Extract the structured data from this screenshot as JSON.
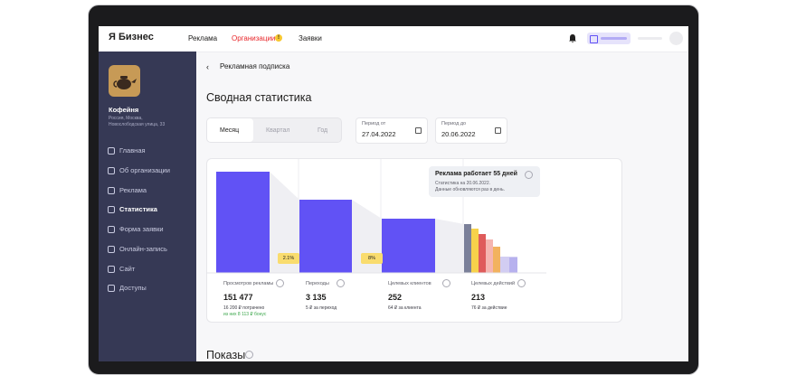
{
  "nav": {
    "logo": "Я Бизнес",
    "items": [
      "Реклама",
      "Организации",
      "Заявки"
    ],
    "badge": "!"
  },
  "sidebar": {
    "org_name": "Кофейня",
    "address": [
      "Россия, Москва,",
      "Новослободская улица, 33"
    ],
    "menu": [
      "Главная",
      "Об организации",
      "Реклама",
      "Статистика",
      "Форма заявки",
      "Онлайн-запись",
      "Сайт",
      "Доступы"
    ]
  },
  "page": {
    "back": "Рекламная подписка",
    "title": "Сводная статистика",
    "periods": [
      "Месяц",
      "Квартал",
      "Год"
    ],
    "date_from": {
      "label": "Период от",
      "value": "27.04.2022"
    },
    "date_to": {
      "label": "Период до",
      "value": "20.06.2022"
    }
  },
  "funnel": {
    "tooltip": {
      "title": "Реклама работает 55 дней",
      "lines": [
        "Статистика на 20.06.2022.",
        "Данные обновляются раз в день."
      ]
    },
    "conversions": [
      "2.1%",
      "8%"
    ],
    "metrics": [
      {
        "label": "Просмотров рекламы",
        "value": "151 477",
        "sub": [
          "16 200 ₽ потрачено",
          "из них 8 113 ₽ бонус"
        ]
      },
      {
        "label": "Переходы",
        "value": "3 135",
        "sub": [
          "5 ₽ за переход"
        ]
      },
      {
        "label": "Целевых клиентов",
        "value": "252",
        "sub": [
          "64 ₽ за клиента"
        ]
      },
      {
        "label": "Целевых действий",
        "value": "213",
        "sub": [
          "76 ₽ за действие"
        ]
      }
    ]
  },
  "section": "Показы"
}
